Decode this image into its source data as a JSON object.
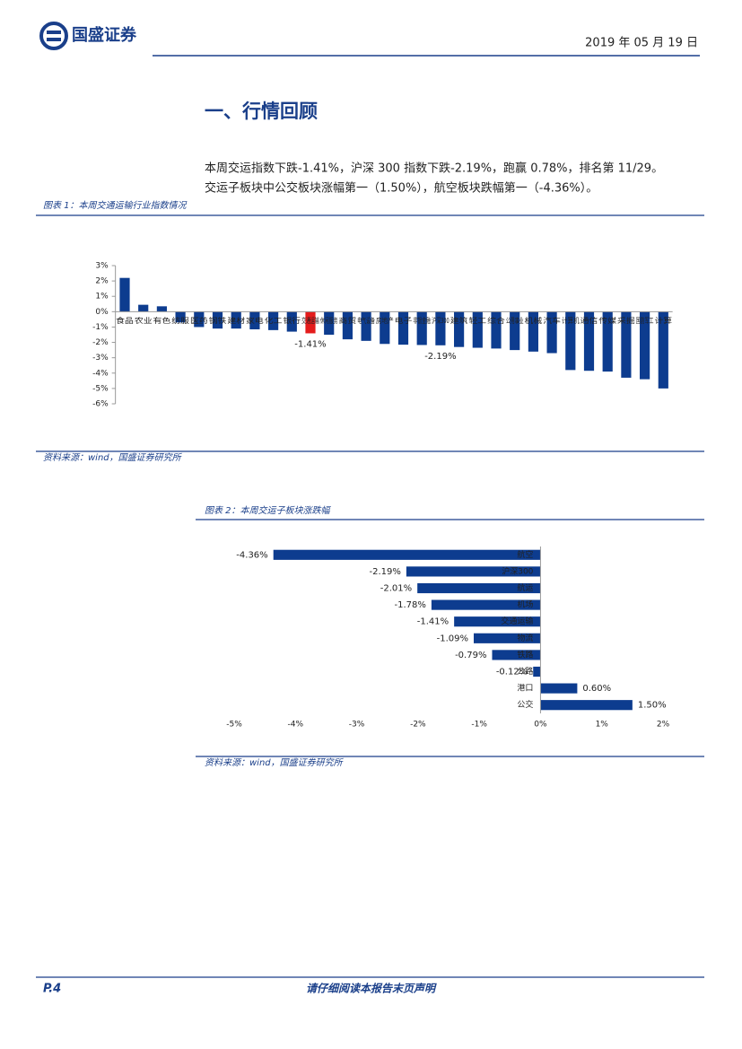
{
  "header": {
    "logo": "国盛证券",
    "date": "2019 年 05 月 19 日"
  },
  "section_title": "一、行情回顾",
  "paragraph": [
    "本周交运指数下跌-1.41%，沪深 300 指数下跌-2.19%，跑赢 0.78%，排名第 11/29。",
    "交运子板块中公交板块涨幅第一（1.50%），航空板块跌幅第一（-4.36%）。"
  ],
  "figures": [
    {
      "caption": "图表 1：本周交通运输行业指数情况",
      "source": "资料来源：wind，国盛证券研究所"
    },
    {
      "caption": "图表 2：本周交运子板块涨跌幅",
      "source": "资料来源：wind，国盛证券研究所"
    }
  ],
  "chart_data": [
    {
      "type": "bar",
      "categories": [
        "食品",
        "农业",
        "有色",
        "纺服",
        "医药",
        "钢铁",
        "建材",
        "家电",
        "化工",
        "银行",
        "交通运输",
        "休闲服务",
        "商贸",
        "电气设备",
        "房地产",
        "电子",
        "非银金融",
        "沪深300",
        "建筑",
        "轻工",
        "综合",
        "公用事业",
        "机械",
        "汽车",
        "计算机",
        "通信",
        "传媒",
        "采掘",
        "国防军工",
        "计算"
      ],
      "values": [
        2.2,
        0.45,
        0.35,
        -0.7,
        -1.0,
        -1.1,
        -1.1,
        -1.15,
        -1.2,
        -1.3,
        -1.41,
        -1.5,
        -1.8,
        -1.9,
        -2.1,
        -2.15,
        -2.17,
        -2.19,
        -2.3,
        -2.35,
        -2.4,
        -2.5,
        -2.6,
        -2.7,
        -3.8,
        -3.85,
        -3.9,
        -4.3,
        -4.4,
        -5.0
      ],
      "value_labels": [
        null,
        null,
        null,
        null,
        null,
        null,
        null,
        null,
        null,
        null,
        "-1.41%",
        null,
        null,
        null,
        null,
        null,
        null,
        "-2.19%",
        null,
        null,
        null,
        null,
        null,
        null,
        null,
        null,
        null,
        null,
        null,
        null
      ],
      "color": "#0d3c8f",
      "highlight": {
        "category": "交通运输",
        "color": "#e41c1c"
      },
      "ylim": [
        -6,
        3
      ],
      "yticks": [
        {
          "value": 3,
          "label": "3%"
        },
        {
          "value": 2,
          "label": "2%"
        },
        {
          "value": 1,
          "label": "1%"
        },
        {
          "value": 0,
          "label": "0%"
        },
        {
          "value": -1,
          "label": "-1%"
        },
        {
          "value": -2,
          "label": "-2%"
        },
        {
          "value": -3,
          "label": "-3%"
        },
        {
          "value": -4,
          "label": "-4%"
        },
        {
          "value": -5,
          "label": "-5%"
        },
        {
          "value": -6,
          "label": "-6%"
        }
      ]
    },
    {
      "type": "barh",
      "categories": [
        "航空",
        "沪深300",
        "航运",
        "机场",
        "交通运输",
        "物流",
        "铁路",
        "公路",
        "港口",
        "公交"
      ],
      "values": [
        -4.36,
        -2.19,
        -2.01,
        -1.78,
        -1.41,
        -1.09,
        -0.79,
        -0.12,
        0.6,
        1.5
      ],
      "value_labels": [
        "-4.36%",
        "-2.19%",
        "-2.01%",
        "-1.78%",
        "-1.41%",
        "-1.09%",
        "-0.79%",
        "-0.12%",
        "0.60%",
        "1.50%"
      ],
      "color": "#0d3c8f",
      "xlim": [
        -5,
        2
      ],
      "xticks": [
        {
          "value": -5,
          "label": "-5%"
        },
        {
          "value": -4,
          "label": "-4%"
        },
        {
          "value": -3,
          "label": "-3%"
        },
        {
          "value": -2,
          "label": "-2%"
        },
        {
          "value": -1,
          "label": "-1%"
        },
        {
          "value": 0,
          "label": "0%"
        },
        {
          "value": 1,
          "label": "1%"
        },
        {
          "value": 2,
          "label": "2%"
        }
      ]
    }
  ],
  "footer": {
    "page": "P.4",
    "disclaimer": "请仔细阅读本报告末页声明"
  }
}
